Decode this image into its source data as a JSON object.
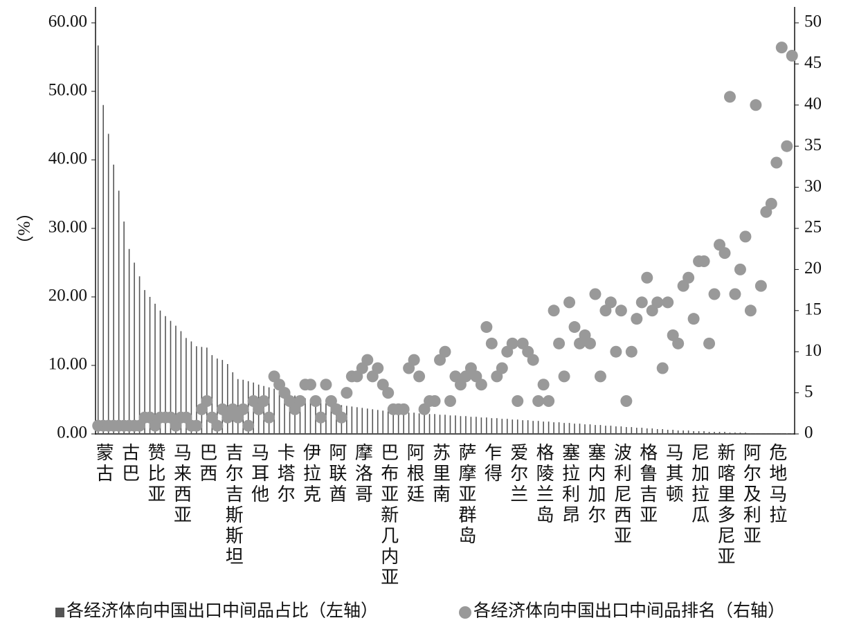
{
  "chart_data": {
    "type": "bar",
    "y_label": "（%）",
    "categories": [
      "蒙古",
      null,
      null,
      null,
      null,
      "古巴",
      null,
      null,
      null,
      null,
      "赞比亚",
      null,
      null,
      null,
      null,
      "马来西亚",
      null,
      null,
      null,
      null,
      "巴西",
      null,
      null,
      null,
      null,
      "吉尔吉斯斯坦",
      null,
      null,
      null,
      null,
      "马耳他",
      null,
      null,
      null,
      null,
      "卡塔尔",
      null,
      null,
      null,
      null,
      "伊拉克",
      null,
      null,
      null,
      null,
      "阿联酋",
      null,
      null,
      null,
      null,
      "摩洛哥",
      null,
      null,
      null,
      null,
      "巴布亚新几内亚",
      null,
      null,
      null,
      null,
      "阿根廷",
      null,
      null,
      null,
      null,
      "苏里南",
      null,
      null,
      null,
      null,
      "萨摩亚群岛",
      null,
      null,
      null,
      null,
      "乍得",
      null,
      null,
      null,
      null,
      "爱尔兰",
      null,
      null,
      null,
      null,
      "格陵兰岛",
      null,
      null,
      null,
      null,
      "塞拉利昂",
      null,
      null,
      null,
      null,
      "塞内加尔",
      null,
      null,
      null,
      null,
      "波利尼西亚",
      null,
      null,
      null,
      null,
      "格鲁吉亚",
      null,
      null,
      null,
      null,
      "马其顿",
      null,
      null,
      null,
      null,
      "尼加拉瓜",
      null,
      null,
      null,
      null,
      "新喀里多尼亚",
      null,
      null,
      null,
      null,
      "阿尔及利亚",
      null,
      null,
      null,
      null,
      "危地马拉",
      null,
      null,
      null,
      null
    ],
    "series": [
      {
        "name": "各经济体向中国出口中间品占比（左轴）",
        "color": "#555555",
        "axis": "y",
        "values": [
          56.7,
          48,
          43.8,
          39.3,
          35.5,
          31,
          27,
          25,
          23,
          21,
          20,
          19,
          18,
          17.2,
          16.5,
          15.8,
          15,
          14,
          13.5,
          12.8,
          12.7,
          12.6,
          11.5,
          11,
          10.8,
          10.2,
          9,
          8,
          7.9,
          7.7,
          7.5,
          7.2,
          7,
          6.8,
          6.6,
          6.3,
          6,
          5.8,
          5.6,
          5.4,
          5.2,
          5,
          4.8,
          4.6,
          4.5,
          4.4,
          4.3,
          4.2,
          4.1,
          4,
          3.9,
          3.8,
          3.7,
          3.6,
          3.5,
          3.4,
          3.3,
          3.3,
          3.2,
          3.2,
          3.1,
          3.1,
          3,
          3,
          2.9,
          2.9,
          2.8,
          2.8,
          2.7,
          2.7,
          2.6,
          2.6,
          2.5,
          2.5,
          2.4,
          2.4,
          2.3,
          2.3,
          2.2,
          2.2,
          2.1,
          2.1,
          2,
          2,
          1.9,
          1.9,
          1.8,
          1.8,
          1.7,
          1.7,
          1.6,
          1.6,
          1.5,
          1.5,
          1.4,
          1.4,
          1.3,
          1.3,
          1.2,
          1.2,
          1.1,
          1.1,
          1,
          1,
          0.9,
          0.9,
          0.8,
          0.8,
          0.7,
          0.7,
          0.6,
          0.6,
          0.5,
          0.5,
          0.5,
          0.4,
          0.4,
          0.4,
          0.3,
          0.3,
          0.3,
          0.3,
          0.2,
          0.2,
          0.2,
          0.2,
          0.1,
          0.1,
          0.1,
          0.1,
          0.1,
          0.1,
          0.1,
          0.05,
          0.05
        ]
      },
      {
        "name": "各经济体向中国出口中间品排名（右轴）",
        "color": "#999999",
        "axis": "y2",
        "values": [
          1,
          1,
          1,
          1,
          1,
          1,
          1,
          1,
          1,
          2,
          2,
          1,
          2,
          2,
          2,
          1,
          2,
          2,
          1,
          1,
          3,
          4,
          2,
          1,
          3,
          2,
          3,
          2,
          3,
          1,
          4,
          3,
          4,
          2,
          7,
          6,
          5,
          4,
          3,
          4,
          6,
          6,
          4,
          2,
          6,
          4,
          3,
          2,
          5,
          7,
          7,
          8,
          9,
          7,
          8,
          6,
          5,
          3,
          3,
          3,
          8,
          9,
          7,
          3,
          4,
          4,
          9,
          10,
          4,
          7,
          6,
          7,
          8,
          7,
          6,
          13,
          11,
          7,
          8,
          10,
          11,
          4,
          11,
          10,
          9,
          4,
          6,
          4,
          15,
          11,
          7,
          16,
          13,
          11,
          12,
          11,
          17,
          7,
          15,
          16,
          10,
          15,
          4,
          10,
          14,
          16,
          19,
          15,
          16,
          8,
          16,
          12,
          11,
          18,
          19,
          14,
          21,
          21,
          11,
          17,
          23,
          22,
          41,
          17,
          20,
          24,
          15,
          40,
          18,
          27,
          28,
          33,
          47,
          35,
          46
        ]
      }
    ],
    "ylim": [
      0,
      60
    ],
    "yticks": [
      {
        "value": 0,
        "label": "0.00"
      },
      {
        "value": 10,
        "label": "10.00"
      },
      {
        "value": 20,
        "label": "20.00"
      },
      {
        "value": 30,
        "label": "30.00"
      },
      {
        "value": 40,
        "label": "40.00"
      },
      {
        "value": 50,
        "label": "50.00"
      },
      {
        "value": 60,
        "label": "60.00"
      }
    ],
    "y2lim": [
      0,
      50
    ],
    "y2ticks": [
      0,
      5,
      10,
      15,
      20,
      25,
      30,
      35,
      40,
      45,
      50
    ],
    "legend": "bottom"
  }
}
